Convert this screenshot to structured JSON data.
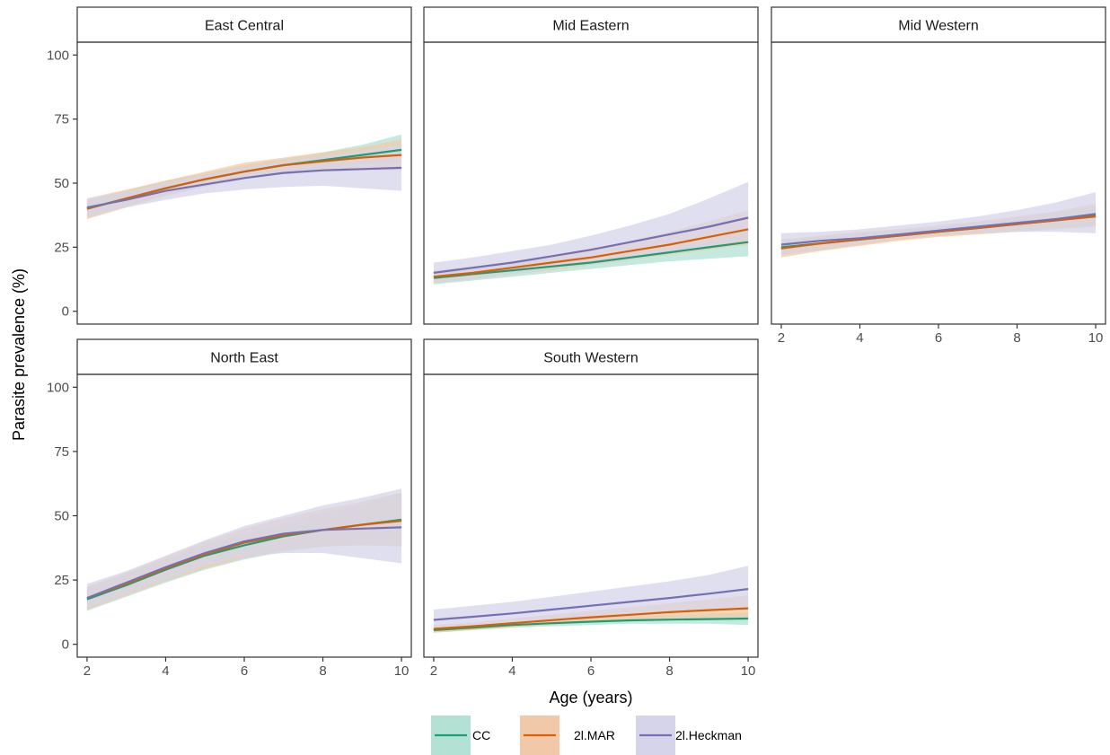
{
  "chart_data": {
    "type": "line",
    "xlabel": "Age (years)",
    "ylabel": "Parasite prevalence (%)",
    "xlim": [
      1.75,
      10.25
    ],
    "ylim": [
      -5,
      105
    ],
    "x_ticks": [
      "2",
      "4",
      "6",
      "8",
      "10"
    ],
    "y_ticks": [
      "0",
      "25",
      "50",
      "75",
      "100"
    ],
    "x": [
      2,
      3,
      4,
      5,
      6,
      7,
      8,
      9,
      10
    ],
    "legend_position": "bottom",
    "series_meta": [
      {
        "name": "CC",
        "color": "#1b9e77",
        "ribbon": "#b3e2d4"
      },
      {
        "name": "2l.MAR",
        "color": "#d95f02",
        "ribbon": "#f2c9a8"
      },
      {
        "name": "2l.Heckman",
        "color": "#7570b3",
        "ribbon": "#d6d4ea"
      }
    ],
    "panels": [
      {
        "title": "East Central",
        "series": [
          {
            "name": "CC",
            "values": [
              40,
              44,
              48,
              51.5,
              54.5,
              57,
              59,
              61,
              63
            ],
            "lower": [
              36.5,
              41,
              45.5,
              49,
              52,
              54.5,
              56,
              57.5,
              58
            ],
            "upper": [
              43.5,
              47,
              51,
              54,
              57,
              59.5,
              62,
              65,
              69
            ]
          },
          {
            "name": "2l.MAR",
            "values": [
              40,
              44,
              48,
              51.5,
              54.5,
              57,
              58.5,
              60,
              61
            ],
            "lower": [
              36,
              40.5,
              45,
              48.5,
              51.5,
              53.5,
              54.5,
              55,
              55
            ],
            "upper": [
              44,
              47.5,
              51,
              54.5,
              58,
              60,
              62,
              64,
              67
            ]
          },
          {
            "name": "2l.Heckman",
            "values": [
              40.5,
              43.5,
              47,
              49.5,
              52,
              54,
              55,
              55.5,
              56
            ],
            "lower": [
              37,
              40.5,
              43.5,
              46,
              47.5,
              48.5,
              49,
              48,
              47
            ],
            "upper": [
              44,
              46.5,
              50,
              53,
              56,
              58.5,
              60.5,
              62.5,
              65
            ]
          }
        ]
      },
      {
        "title": "Mid Eastern",
        "series": [
          {
            "name": "CC",
            "values": [
              13,
              14.5,
              16,
              17.5,
              19,
              21,
              23,
              25,
              27
            ],
            "lower": [
              10.5,
              12,
              13.5,
              15,
              16.5,
              18,
              19.5,
              20.5,
              21.5
            ],
            "upper": [
              15.5,
              17,
              18.5,
              20,
              21.5,
              24,
              26.5,
              29.5,
              32.5
            ]
          },
          {
            "name": "2l.MAR",
            "values": [
              13.5,
              15,
              17,
              19,
              21,
              23.5,
              26,
              29,
              32
            ],
            "lower": [
              11,
              12.5,
              14.5,
              16,
              18,
              20,
              22,
              24,
              26
            ],
            "upper": [
              16,
              17.5,
              19.5,
              22,
              24.5,
              27.5,
              31,
              35,
              39.5
            ]
          },
          {
            "name": "2l.Heckman",
            "values": [
              15,
              17,
              19,
              21.5,
              24,
              27,
              30,
              33,
              36.5
            ],
            "lower": [
              11,
              12.5,
              14.5,
              16.5,
              18.5,
              20.5,
              23,
              25.5,
              28
            ],
            "upper": [
              19,
              21,
              23.5,
              26,
              29.5,
              33.5,
              38,
              44,
              50.5
            ]
          }
        ]
      },
      {
        "title": "Mid Western",
        "series": [
          {
            "name": "CC",
            "values": [
              25,
              26.5,
              28,
              29.5,
              31,
              32.5,
              34,
              35.5,
              37.5
            ],
            "lower": [
              22,
              24,
              26,
              28,
              29.5,
              30.5,
              31.5,
              32.5,
              33.5
            ],
            "upper": [
              28,
              29,
              30.5,
              31.5,
              33,
              34.5,
              36.5,
              38.5,
              41
            ]
          },
          {
            "name": "2l.MAR",
            "values": [
              24.5,
              26.5,
              28,
              29.5,
              31,
              32.5,
              34,
              35.5,
              37
            ],
            "lower": [
              21,
              23.5,
              25.5,
              27.5,
              29,
              30,
              31,
              32,
              33
            ],
            "upper": [
              28,
              29.5,
              31,
              32,
              33.5,
              35,
              37,
              39,
              42
            ]
          },
          {
            "name": "2l.Heckman",
            "values": [
              26,
              27.5,
              28.5,
              30,
              31.5,
              33,
              34.5,
              36,
              38
            ],
            "lower": [
              22,
              24.5,
              26.5,
              28.5,
              30,
              30.5,
              31,
              31,
              30.5
            ],
            "upper": [
              30.5,
              31,
              32,
              33.5,
              35,
              37,
              39.5,
              42.5,
              46.5
            ]
          }
        ]
      },
      {
        "title": "North East",
        "series": [
          {
            "name": "CC",
            "values": [
              17.5,
              23,
              29,
              34.5,
              38.5,
              42,
              44.5,
              46.5,
              48.5
            ],
            "lower": [
              13,
              18.5,
              24,
              29,
              33,
              36,
              38,
              38.5,
              38
            ],
            "upper": [
              22,
              27.5,
              33,
              38.5,
              43,
              47,
              51,
              54.5,
              59
            ]
          },
          {
            "name": "2l.MAR",
            "values": [
              18,
              23.5,
              29.5,
              35,
              39.5,
              42.5,
              44.5,
              46.5,
              48
            ],
            "lower": [
              13.5,
              19,
              24.5,
              29.5,
              33.5,
              36.5,
              38,
              38.5,
              38.5
            ],
            "upper": [
              22.5,
              28,
              34,
              40,
              45,
              49,
              52.5,
              55.5,
              59
            ]
          },
          {
            "name": "2l.Heckman",
            "values": [
              18,
              24,
              30,
              35.5,
              40,
              43,
              44.5,
              45,
              45.5
            ],
            "lower": [
              14,
              19.5,
              25,
              30.5,
              34,
              35.5,
              35.5,
              33.5,
              31.5
            ],
            "upper": [
              23.5,
              28.5,
              34.5,
              40.5,
              46,
              50,
              54,
              57,
              60.5
            ]
          }
        ]
      },
      {
        "title": "South Western",
        "series": [
          {
            "name": "CC",
            "values": [
              5.5,
              6.5,
              7.5,
              8.2,
              8.8,
              9.3,
              9.6,
              9.8,
              10
            ],
            "lower": [
              4.5,
              5.5,
              6.5,
              7,
              7.5,
              8,
              8,
              8,
              7.5
            ],
            "upper": [
              6.5,
              7.5,
              8.5,
              9.5,
              10.3,
              11,
              11.5,
              12,
              12.5
            ]
          },
          {
            "name": "2l.MAR",
            "values": [
              6,
              7,
              8.2,
              9.4,
              10.5,
              11.5,
              12.5,
              13.3,
              14
            ],
            "lower": [
              4.5,
              5.5,
              6.5,
              7.5,
              8.5,
              9,
              9.5,
              9.5,
              9.5
            ],
            "upper": [
              7.5,
              8.5,
              10,
              11.5,
              13,
              14.5,
              16,
              17.5,
              19
            ]
          },
          {
            "name": "2l.Heckman",
            "values": [
              9.5,
              10.7,
              12,
              13.5,
              15,
              16.5,
              18,
              19.7,
              21.5
            ],
            "lower": [
              6,
              7,
              8,
              9,
              10,
              11,
              12,
              13,
              14
            ],
            "upper": [
              13.5,
              15,
              16.5,
              18.5,
              20.5,
              22.5,
              24.5,
              27,
              30.5
            ]
          }
        ]
      }
    ]
  }
}
